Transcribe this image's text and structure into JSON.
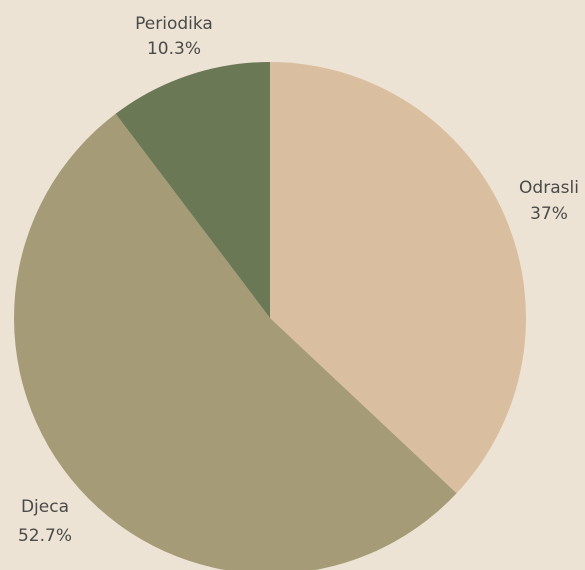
{
  "chart_data": {
    "type": "pie",
    "slices": [
      {
        "label": "Odrasli",
        "value": 37,
        "value_label": "37%",
        "color": "#d9bfa0"
      },
      {
        "label": "Djeca",
        "value": 52.7,
        "value_label": "52.7%",
        "color": "#a59b77"
      },
      {
        "label": "Periodika",
        "value": 10.3,
        "value_label": "10.3%",
        "color": "#6b7856"
      }
    ],
    "start_angle_deg": 0,
    "direction": "clockwise",
    "background_color": "#ede3d4",
    "legend": "none"
  }
}
